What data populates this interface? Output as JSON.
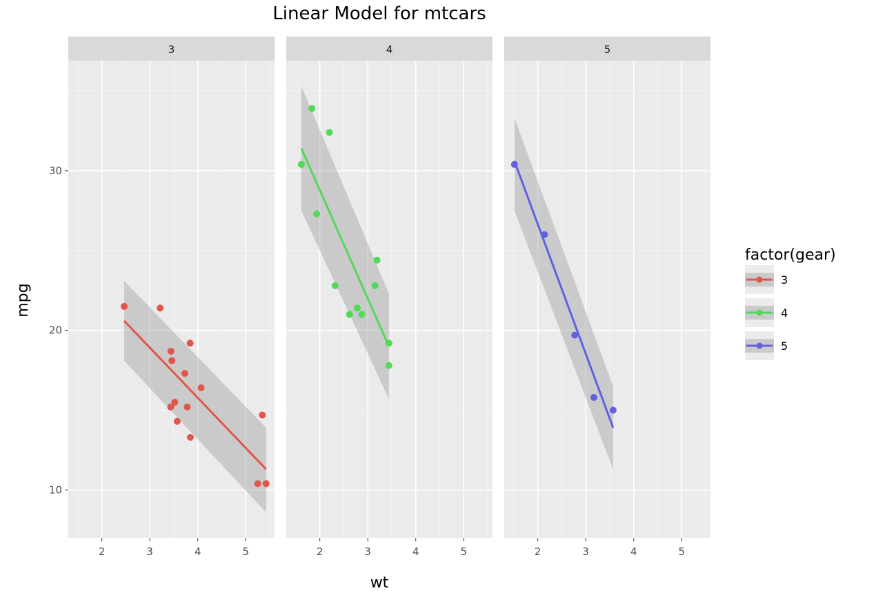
{
  "chart_data": {
    "type": "scatter",
    "title": "Linear Model for mtcars",
    "xlabel": "wt",
    "ylabel": "mpg",
    "facet_var": "gear",
    "xlim": [
      1.3,
      5.6
    ],
    "ylim": [
      7.0,
      36.9
    ],
    "x_ticks": [
      2,
      3,
      4,
      5
    ],
    "y_ticks": [
      10,
      20,
      30
    ],
    "grid": true,
    "legend": {
      "title": "factor(gear)",
      "placement": "right",
      "entries": [
        "3",
        "4",
        "5"
      ]
    },
    "facets": [
      {
        "label": "3",
        "color": "#e0564a",
        "points": [
          [
            2.465,
            21.5
          ],
          [
            3.215,
            21.4
          ],
          [
            3.44,
            18.7
          ],
          [
            3.46,
            18.1
          ],
          [
            3.57,
            14.3
          ],
          [
            3.73,
            17.3
          ],
          [
            3.78,
            15.2
          ],
          [
            3.84,
            19.2
          ],
          [
            3.845,
            13.3
          ],
          [
            3.52,
            15.5
          ],
          [
            3.435,
            15.2
          ],
          [
            4.07,
            16.4
          ],
          [
            5.25,
            10.4
          ],
          [
            5.424,
            10.4
          ],
          [
            5.345,
            14.7
          ]
        ],
        "fit": {
          "x": [
            2.465,
            5.424
          ],
          "y": [
            20.6,
            11.3
          ],
          "ci_low": [
            18.1,
            8.6
          ],
          "ci_high": [
            23.1,
            13.9
          ]
        }
      },
      {
        "label": "4",
        "color": "#53d859",
        "points": [
          [
            2.62,
            21.0
          ],
          [
            2.875,
            21.0
          ],
          [
            2.32,
            22.8
          ],
          [
            3.19,
            24.4
          ],
          [
            3.15,
            22.8
          ],
          [
            3.44,
            19.2
          ],
          [
            3.44,
            17.8
          ],
          [
            2.2,
            32.4
          ],
          [
            1.615,
            30.4
          ],
          [
            1.835,
            33.9
          ],
          [
            1.935,
            27.3
          ],
          [
            2.78,
            21.4
          ]
        ],
        "fit": {
          "x": [
            1.615,
            3.44
          ],
          "y": [
            31.4,
            19.0
          ],
          "ci_low": [
            27.5,
            15.7
          ],
          "ci_high": [
            35.3,
            22.3
          ]
        }
      },
      {
        "label": "5",
        "color": "#6060e0",
        "points": [
          [
            2.14,
            26.0
          ],
          [
            1.513,
            30.4
          ],
          [
            3.17,
            15.8
          ],
          [
            2.77,
            19.7
          ],
          [
            3.57,
            15.0
          ]
        ],
        "fit": {
          "x": [
            1.513,
            3.57
          ],
          "y": [
            30.6,
            13.9
          ],
          "ci_low": [
            27.5,
            11.3
          ],
          "ci_high": [
            33.3,
            16.5
          ]
        }
      }
    ]
  }
}
